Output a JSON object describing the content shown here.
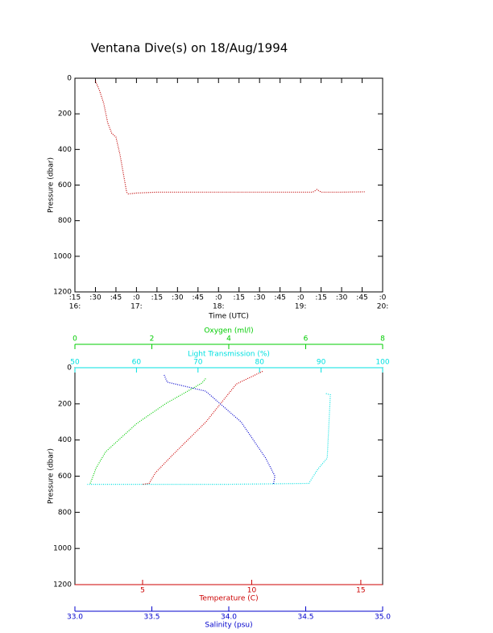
{
  "chart_data": [
    {
      "type": "line",
      "title": "Ventana Dive(s) on 18/Aug/1994",
      "x_label": "Time (UTC)",
      "y_label": "Pressure (dbar)",
      "xlim": [
        16.25,
        20
      ],
      "ylim": [
        1200,
        0
      ],
      "xticks": [
        {
          "value": 16.25,
          "label": ":15"
        },
        {
          "value": 16.5,
          "label": ":30"
        },
        {
          "value": 16.75,
          "label": ":45"
        },
        {
          "value": 17,
          "label": ":0"
        },
        {
          "value": 17.25,
          "label": ":15"
        },
        {
          "value": 17.5,
          "label": ":30"
        },
        {
          "value": 17.75,
          "label": ":45"
        },
        {
          "value": 18,
          "label": ":0"
        },
        {
          "value": 18.25,
          "label": ":15"
        },
        {
          "value": 18.5,
          "label": ":30"
        },
        {
          "value": 18.75,
          "label": ":45"
        },
        {
          "value": 19,
          "label": ":0"
        },
        {
          "value": 19.25,
          "label": ":15"
        },
        {
          "value": 19.5,
          "label": ":30"
        },
        {
          "value": 19.75,
          "label": ":45"
        },
        {
          "value": 20,
          "label": ":0"
        }
      ],
      "hour_ticks": [
        {
          "value": 16.25,
          "label": "16:"
        },
        {
          "value": 17,
          "label": "17:"
        },
        {
          "value": 18,
          "label": "18:"
        },
        {
          "value": 19,
          "label": "19:"
        },
        {
          "value": 20,
          "label": "20:"
        }
      ],
      "yticks": [
        0,
        200,
        400,
        600,
        800,
        1000,
        1200
      ],
      "series": [
        {
          "color": "#c00000",
          "x": [
            16.5,
            16.55,
            16.6,
            16.65,
            16.7,
            16.75,
            16.8,
            16.85,
            16.88,
            16.9,
            17.0,
            17.25,
            17.5,
            18.0,
            18.5,
            19.0,
            19.15,
            19.2,
            19.25,
            19.5,
            19.78
          ],
          "values": [
            15,
            70,
            140,
            250,
            310,
            330,
            430,
            560,
            640,
            650,
            645,
            640,
            640,
            640,
            640,
            640,
            640,
            625,
            640,
            640,
            638
          ]
        }
      ]
    },
    {
      "type": "profile",
      "y_label": "Pressure (dbar)",
      "ylim": [
        1200,
        0
      ],
      "yticks": [
        0,
        200,
        400,
        600,
        800,
        1000,
        1200
      ],
      "x_axes": [
        {
          "label": "Oxygen (ml/l)",
          "color": "#00cc00",
          "xlim": [
            0,
            8
          ],
          "xticks": [
            0,
            2,
            4,
            6,
            8
          ]
        },
        {
          "label": "Light Transmission (%)",
          "color": "#00e0e0",
          "xlim": [
            50,
            100
          ],
          "xticks": [
            50,
            60,
            70,
            80,
            90,
            100
          ]
        },
        {
          "label": "Temperature (C)",
          "color": "#cc0000",
          "xlim": [
            1.9,
            16
          ],
          "xticks": [
            5,
            10,
            15
          ]
        },
        {
          "label": "Salinity (psu)",
          "color": "#0000cc",
          "xlim": [
            33,
            35
          ],
          "xticks": [
            {
              "value": 33,
              "label": "33.0"
            },
            {
              "value": 33.5,
              "label": "33.5"
            },
            {
              "value": 34,
              "label": "34.0"
            },
            {
              "value": 34.5,
              "label": "34.5"
            },
            {
              "value": 35,
              "label": "35.0"
            }
          ]
        }
      ],
      "series": [
        {
          "color": "#00cc00",
          "x_axis": 0,
          "x": [
            3.4,
            3.3,
            2.35,
            1.6,
            0.8,
            0.55,
            0.4,
            0.4
          ],
          "values": [
            60,
            85,
            200,
            310,
            465,
            555,
            640,
            645
          ]
        },
        {
          "color": "#00e0e0",
          "x_axis": 1,
          "x": [
            90.8,
            91.5,
            91,
            89.5,
            88,
            75,
            60,
            52
          ],
          "values": [
            143,
            150,
            500,
            560,
            640,
            645,
            645,
            645
          ]
        },
        {
          "color": "#cc0000",
          "x_axis": 2,
          "x": [
            10.5,
            9.3,
            8.9,
            7.9,
            6.4,
            5.6,
            5.3,
            5.0
          ],
          "values": [
            20,
            90,
            150,
            300,
            480,
            580,
            640,
            645
          ]
        },
        {
          "color": "#0000cc",
          "x_axis": 3,
          "x": [
            33.58,
            33.6,
            33.85,
            34.08,
            34.24,
            34.3,
            34.29
          ],
          "values": [
            40,
            80,
            130,
            300,
            500,
            600,
            645
          ]
        }
      ]
    }
  ]
}
